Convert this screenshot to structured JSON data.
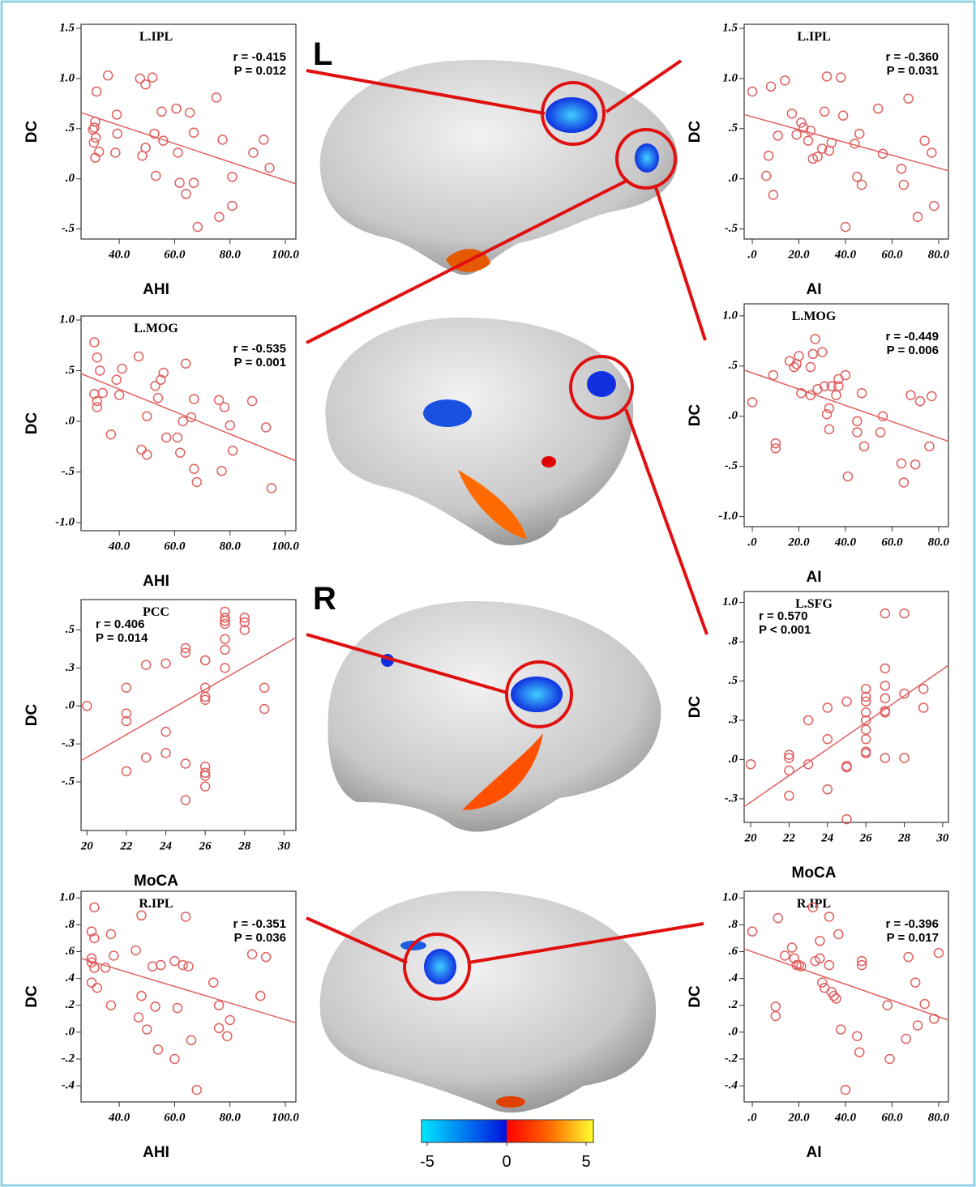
{
  "chart_data": [
    {
      "type": "scatter",
      "title": "L.IPL",
      "annotations": [
        "r = -0.415",
        "P = 0.012"
      ],
      "xlabel": "AHI",
      "ylabel": "DC",
      "color": "#e06060",
      "x": [
        31.8,
        35.9,
        31.3,
        30.5,
        31,
        31.5,
        32.7,
        30.8,
        31.3,
        39.1,
        39.3,
        38.6,
        47.5,
        49.5,
        52,
        48.3,
        49.5,
        52.7,
        53.2,
        55.3,
        55.9,
        60.6,
        61.2,
        61.8,
        64.1,
        65.5,
        66.9,
        66.9,
        68.3,
        75.1,
        76.1,
        77.3,
        80.8,
        80.8,
        88.4,
        92.2,
        94.3
      ],
      "y": [
        0.87,
        1.03,
        0.57,
        0.49,
        0.51,
        0.41,
        0.27,
        0.36,
        0.21,
        0.64,
        0.45,
        0.26,
        1.0,
        0.94,
        1.01,
        0.23,
        0.31,
        0.45,
        0.03,
        0.67,
        0.38,
        0.7,
        0.26,
        -0.04,
        -0.15,
        0.66,
        0.46,
        -0.04,
        -0.48,
        0.81,
        -0.38,
        0.39,
        0.02,
        -0.27,
        0.26,
        0.39,
        0.11
      ],
      "fit_line": {
        "x": [
          26.2,
          103.8
        ],
        "y": [
          0.66,
          -0.05
        ]
      },
      "xlim": [
        26.2,
        103.8
      ],
      "ylim": [
        -0.6,
        1.54
      ],
      "xticks": [
        {
          "value": 40,
          "label": "40.0"
        },
        {
          "value": 60,
          "label": "60.0"
        },
        {
          "value": 80,
          "label": "80.0"
        },
        {
          "value": 100,
          "label": "100.0"
        }
      ],
      "yticks": [
        {
          "value": 1.5,
          "label": "1.5"
        },
        {
          "value": 1,
          "label": "1.0"
        },
        {
          "value": 0.5,
          "label": ".5"
        },
        {
          "value": 0,
          "label": ".0"
        },
        {
          "value": -0.5,
          "label": "-.5"
        }
      ]
    },
    {
      "type": "scatter",
      "title": "L.MOG",
      "annotations": [
        "r = -0.535",
        "P = 0.001"
      ],
      "xlabel": "AHI",
      "ylabel": "DC",
      "color": "#e06060",
      "x": [
        31,
        32,
        33,
        31,
        32,
        32,
        34,
        37,
        39,
        40,
        41,
        47,
        48,
        50,
        50,
        53,
        54,
        55,
        56,
        57,
        61,
        62,
        63,
        64,
        66,
        67,
        67,
        68,
        76,
        77,
        78,
        80,
        81,
        88,
        93,
        95
      ],
      "y": [
        0.78,
        0.63,
        0.5,
        0.27,
        0.2,
        0.14,
        0.28,
        -0.13,
        0.41,
        0.26,
        0.52,
        0.64,
        -0.28,
        -0.33,
        0.05,
        0.35,
        0.23,
        0.41,
        0.48,
        -0.16,
        -0.16,
        -0.31,
        0,
        0.57,
        0.04,
        0.22,
        -0.47,
        -0.6,
        0.21,
        -0.49,
        0.14,
        -0.04,
        -0.29,
        0.2,
        -0.06,
        -0.66
      ],
      "fit_line": {
        "x": [
          26.2,
          103.8
        ],
        "y": [
          0.47,
          -0.39
        ]
      },
      "xlim": [
        26.2,
        103.8
      ],
      "ylim": [
        -1.08,
        1.04
      ],
      "xticks": [
        {
          "value": 40,
          "label": "40.0"
        },
        {
          "value": 60,
          "label": "60.0"
        },
        {
          "value": 80,
          "label": "80.0"
        },
        {
          "value": 100,
          "label": "100.0"
        }
      ],
      "yticks": [
        {
          "value": 1,
          "label": "1.0"
        },
        {
          "value": 0.5,
          "label": ".5"
        },
        {
          "value": 0,
          "label": ".0"
        },
        {
          "value": -0.5,
          "label": "-.5"
        },
        {
          "value": -1,
          "label": "-1.0"
        }
      ]
    },
    {
      "type": "scatter",
      "title": "PCC",
      "annotations": [
        "r = 0.406",
        "P = 0.014"
      ],
      "xlabel": "MoCA",
      "ylabel": "DC",
      "color": "#e06060",
      "x": [
        20,
        22,
        22,
        22,
        22,
        23,
        23,
        24,
        24,
        24,
        25,
        25,
        25,
        25,
        26,
        26,
        26,
        26,
        26,
        26,
        26,
        26,
        26,
        27,
        27,
        27,
        27,
        27,
        27,
        27,
        28,
        28,
        28,
        29,
        29
      ],
      "y": [
        0.0,
        0.12,
        -0.05,
        -0.1,
        -0.43,
        0.27,
        -0.34,
        0.28,
        -0.17,
        -0.31,
        0.38,
        0.35,
        -0.38,
        -0.62,
        0.3,
        0.3,
        0.12,
        0.06,
        0.04,
        -0.4,
        -0.44,
        -0.46,
        -0.53,
        0.62,
        0.58,
        0.56,
        0.54,
        0.44,
        0.37,
        0.25,
        0.58,
        0.55,
        0.5,
        0.12,
        -0.02
      ],
      "fit_line": {
        "x": [
          19.7,
          30.6
        ],
        "y": [
          -0.36,
          0.45
        ]
      },
      "xlim": [
        19.7,
        30.6
      ],
      "ylim": [
        -0.82,
        0.7
      ],
      "xticks": [
        20,
        22,
        24,
        26,
        28,
        30
      ],
      "yticks": [
        {
          "value": 0.5,
          "label": ".5"
        },
        {
          "value": 0.25,
          "label": ".3"
        },
        {
          "value": 0,
          "label": ".0"
        },
        {
          "value": -0.25,
          "label": "-.3"
        },
        {
          "value": -0.5,
          "label": "-.5"
        }
      ]
    },
    {
      "type": "scatter",
      "title": "R.IPL",
      "annotations": [
        "r = -0.351",
        "P = 0.036"
      ],
      "xlabel": "AHI",
      "ylabel": "DC",
      "color": "#e06060",
      "x": [
        31,
        30,
        31,
        30,
        30,
        31,
        30,
        32,
        35,
        37,
        37,
        38,
        46,
        47,
        48,
        48,
        50,
        52,
        53,
        54,
        55,
        60,
        60,
        61,
        63,
        64,
        65,
        66,
        68,
        74,
        76,
        76,
        79,
        80,
        88,
        91,
        93
      ],
      "y": [
        0.93,
        0.75,
        0.7,
        0.55,
        0.52,
        0.48,
        0.37,
        0.33,
        0.48,
        0.73,
        0.2,
        0.57,
        0.61,
        0.11,
        0.87,
        0.27,
        0.02,
        0.49,
        0.19,
        -0.13,
        0.5,
        -0.2,
        0.53,
        0.18,
        0.5,
        0.86,
        0.49,
        -0.06,
        -0.43,
        0.37,
        0.03,
        0.2,
        -0.03,
        0.09,
        0.58,
        0.27,
        0.56
      ],
      "fit_line": {
        "x": [
          26.2,
          103.8
        ],
        "y": [
          0.55,
          0.07
        ]
      },
      "xlim": [
        26.2,
        103.8
      ],
      "ylim": [
        -0.52,
        1.05
      ],
      "xticks": [
        {
          "value": 40,
          "label": "40.0"
        },
        {
          "value": 60,
          "label": "60.0"
        },
        {
          "value": 80,
          "label": "80.0"
        },
        {
          "value": 100,
          "label": "100.0"
        }
      ],
      "yticks": [
        {
          "value": 1,
          "label": "1.0"
        },
        {
          "value": 0.8,
          "label": ".8"
        },
        {
          "value": 0.6,
          "label": ".6"
        },
        {
          "value": 0.4,
          "label": ".4"
        },
        {
          "value": 0.2,
          "label": ".2"
        },
        {
          "value": 0,
          "label": ".0"
        },
        {
          "value": -0.2,
          "label": "-.2"
        },
        {
          "value": -0.4,
          "label": "-.4"
        }
      ]
    },
    {
      "type": "scatter",
      "title": "L.IPL",
      "annotations": [
        "r = -0.360",
        "P = 0.031"
      ],
      "xlabel": "AI",
      "ylabel": "DC",
      "color": "#e06060",
      "x": [
        0,
        8,
        11,
        14,
        17,
        19,
        7,
        6,
        9,
        21,
        22,
        25,
        24,
        26,
        28,
        30,
        31,
        32,
        33,
        34,
        38,
        39,
        40,
        44,
        45,
        46,
        47,
        54,
        56,
        64,
        65,
        67,
        71,
        74,
        77,
        78
      ],
      "y": [
        0.87,
        0.92,
        0.43,
        0.98,
        0.65,
        0.44,
        0.23,
        0.03,
        -0.16,
        0.56,
        0.51,
        0.48,
        0.38,
        0.2,
        0.22,
        0.3,
        0.67,
        1.02,
        0.28,
        0.36,
        1.01,
        0.63,
        -0.48,
        0.35,
        0.02,
        0.45,
        -0.06,
        0.7,
        0.25,
        0.1,
        -0.06,
        0.8,
        -0.38,
        0.38,
        0.26,
        -0.27
      ],
      "fit_line": {
        "x": [
          -3.5,
          84.2
        ],
        "y": [
          0.64,
          0.08
        ]
      },
      "xlim": [
        -3.5,
        84.2
      ],
      "ylim": [
        -0.6,
        1.54
      ],
      "xticks": [
        {
          "value": 0,
          "label": ".0"
        },
        {
          "value": 20,
          "label": "20.0"
        },
        {
          "value": 40,
          "label": "40.0"
        },
        {
          "value": 60,
          "label": "60.0"
        },
        {
          "value": 80,
          "label": "80.0"
        }
      ],
      "yticks": [
        {
          "value": 1.5,
          "label": "1.5"
        },
        {
          "value": 1,
          "label": "1.0"
        },
        {
          "value": 0.5,
          "label": ".5"
        },
        {
          "value": 0,
          "label": ".0"
        },
        {
          "value": -0.5,
          "label": "-.5"
        }
      ]
    },
    {
      "type": "scatter",
      "title": "L.MOG",
      "annotations": [
        "r = -0.449",
        "P = 0.006"
      ],
      "xlabel": "AI",
      "ylabel": "DC",
      "color": "#e06060",
      "x": [
        0,
        9,
        10,
        10,
        16,
        18,
        19,
        20,
        21,
        25,
        25,
        26,
        27,
        28,
        30,
        31,
        32,
        33,
        33,
        34,
        36,
        37,
        37,
        40,
        41,
        45,
        45,
        47,
        48,
        55,
        56,
        64,
        65,
        68,
        70,
        72,
        77,
        76
      ],
      "y": [
        0.14,
        0.41,
        -0.27,
        -0.32,
        0.55,
        0.49,
        0.52,
        0.6,
        0.23,
        0.21,
        0.49,
        0.62,
        0.77,
        0.27,
        0.64,
        0.3,
        0.02,
        0.08,
        -0.13,
        0.3,
        0.21,
        0.37,
        0.3,
        0.41,
        -0.6,
        -0.05,
        -0.16,
        0.23,
        -0.3,
        -0.16,
        0,
        -0.47,
        -0.66,
        0.21,
        -0.48,
        0.15,
        0.2,
        -0.3
      ],
      "fit_line": {
        "x": [
          -3.5,
          84.2
        ],
        "y": [
          0.46,
          -0.25
        ]
      },
      "xlim": [
        -3.5,
        84.2
      ],
      "ylim": [
        -1.1,
        1.12
      ],
      "xticks": [
        {
          "value": 0,
          "label": ".0"
        },
        {
          "value": 20,
          "label": "20.0"
        },
        {
          "value": 40,
          "label": "40.0"
        },
        {
          "value": 60,
          "label": "60.0"
        },
        {
          "value": 80,
          "label": "80.0"
        }
      ],
      "yticks": [
        {
          "value": 1,
          "label": "1.0"
        },
        {
          "value": 0.5,
          "label": ".5"
        },
        {
          "value": 0,
          "label": ".0"
        },
        {
          "value": -0.5,
          "label": "-.5"
        },
        {
          "value": -1,
          "label": "-1.0"
        }
      ]
    },
    {
      "type": "scatter",
      "title": "L.SFG",
      "annotations": [
        "r = 0.570",
        "P < 0.001"
      ],
      "xlabel": "MoCA",
      "ylabel": "DC",
      "color": "#e06060",
      "x": [
        20,
        22,
        22,
        22,
        22,
        23,
        23,
        24,
        24,
        24,
        25,
        25,
        25,
        25,
        26,
        26,
        26,
        26,
        26,
        26,
        26,
        26,
        26,
        27,
        27,
        27,
        27,
        27,
        27,
        27,
        28,
        28,
        28,
        29,
        29
      ],
      "y": [
        -0.03,
        0.03,
        0.01,
        -0.07,
        -0.23,
        0.25,
        -0.03,
        0.33,
        0.13,
        -0.19,
        0.37,
        -0.04,
        -0.05,
        -0.38,
        0.45,
        0.4,
        0.37,
        0.3,
        0.25,
        0.19,
        0.13,
        0.05,
        0.04,
        0.93,
        0.58,
        0.47,
        0.39,
        0.3,
        0.31,
        0.01,
        0.93,
        0.42,
        0.01,
        0.45,
        0.33
      ],
      "fit_line": {
        "x": [
          19.66,
          30.3
        ],
        "y": [
          -0.3,
          0.6
        ]
      },
      "xlim": [
        19.66,
        30.3
      ],
      "ylim": [
        -0.4,
        1.07
      ],
      "xticks": [
        20,
        22,
        24,
        26,
        28,
        30
      ],
      "yticks": [
        {
          "value": 1,
          "label": "1.0"
        },
        {
          "value": 0.75,
          "label": ".8"
        },
        {
          "value": 0.5,
          "label": ".5"
        },
        {
          "value": 0.25,
          "label": ".3"
        },
        {
          "value": 0,
          "label": ".0"
        },
        {
          "value": -0.25,
          "label": "-.3"
        }
      ]
    },
    {
      "type": "scatter",
      "title": "R.IPL",
      "annotations": [
        "r = -0.396",
        "P = 0.017"
      ],
      "xlabel": "AI",
      "ylabel": "DC",
      "color": "#e06060",
      "x": [
        0,
        11,
        10,
        10,
        14,
        17,
        18,
        19,
        20,
        21,
        26,
        27,
        29,
        29,
        30,
        31,
        33,
        33,
        34,
        35,
        36,
        37,
        38,
        40,
        45,
        46,
        47,
        47,
        58,
        59,
        66,
        67,
        70,
        71,
        74,
        78,
        80
      ],
      "y": [
        0.75,
        0.85,
        0.19,
        0.12,
        0.57,
        0.63,
        0.55,
        0.5,
        0.5,
        0.49,
        0.93,
        0.53,
        0.68,
        0.55,
        0.37,
        0.33,
        0.86,
        0.5,
        0.3,
        0.27,
        0.25,
        0.73,
        0.02,
        -0.43,
        -0.03,
        -0.15,
        0.5,
        0.53,
        0.2,
        -0.2,
        -0.05,
        0.56,
        0.37,
        0.05,
        0.21,
        0.1,
        0.59
      ],
      "fit_line": {
        "x": [
          -3.5,
          84.2
        ],
        "y": [
          0.62,
          0.09
        ]
      },
      "xlim": [
        -3.5,
        84.2
      ],
      "ylim": [
        -0.52,
        1.05
      ],
      "xticks": [
        {
          "value": 0,
          "label": ".0"
        },
        {
          "value": 20,
          "label": "20.0"
        },
        {
          "value": 40,
          "label": "40.0"
        },
        {
          "value": 60,
          "label": "60.0"
        },
        {
          "value": 80,
          "label": "80.0"
        }
      ],
      "yticks": [
        {
          "value": 1,
          "label": "1.0"
        },
        {
          "value": 0.8,
          "label": ".8"
        },
        {
          "value": 0.6,
          "label": ".6"
        },
        {
          "value": 0.4,
          "label": ".4"
        },
        {
          "value": 0.2,
          "label": ".2"
        },
        {
          "value": 0,
          "label": ".0"
        },
        {
          "value": -0.2,
          "label": "-.2"
        },
        {
          "value": -0.4,
          "label": "-.4"
        }
      ]
    }
  ],
  "hemisphere_labels": [
    "L",
    "R"
  ],
  "colorbar": {
    "ticks": [
      -5,
      0,
      5
    ]
  }
}
